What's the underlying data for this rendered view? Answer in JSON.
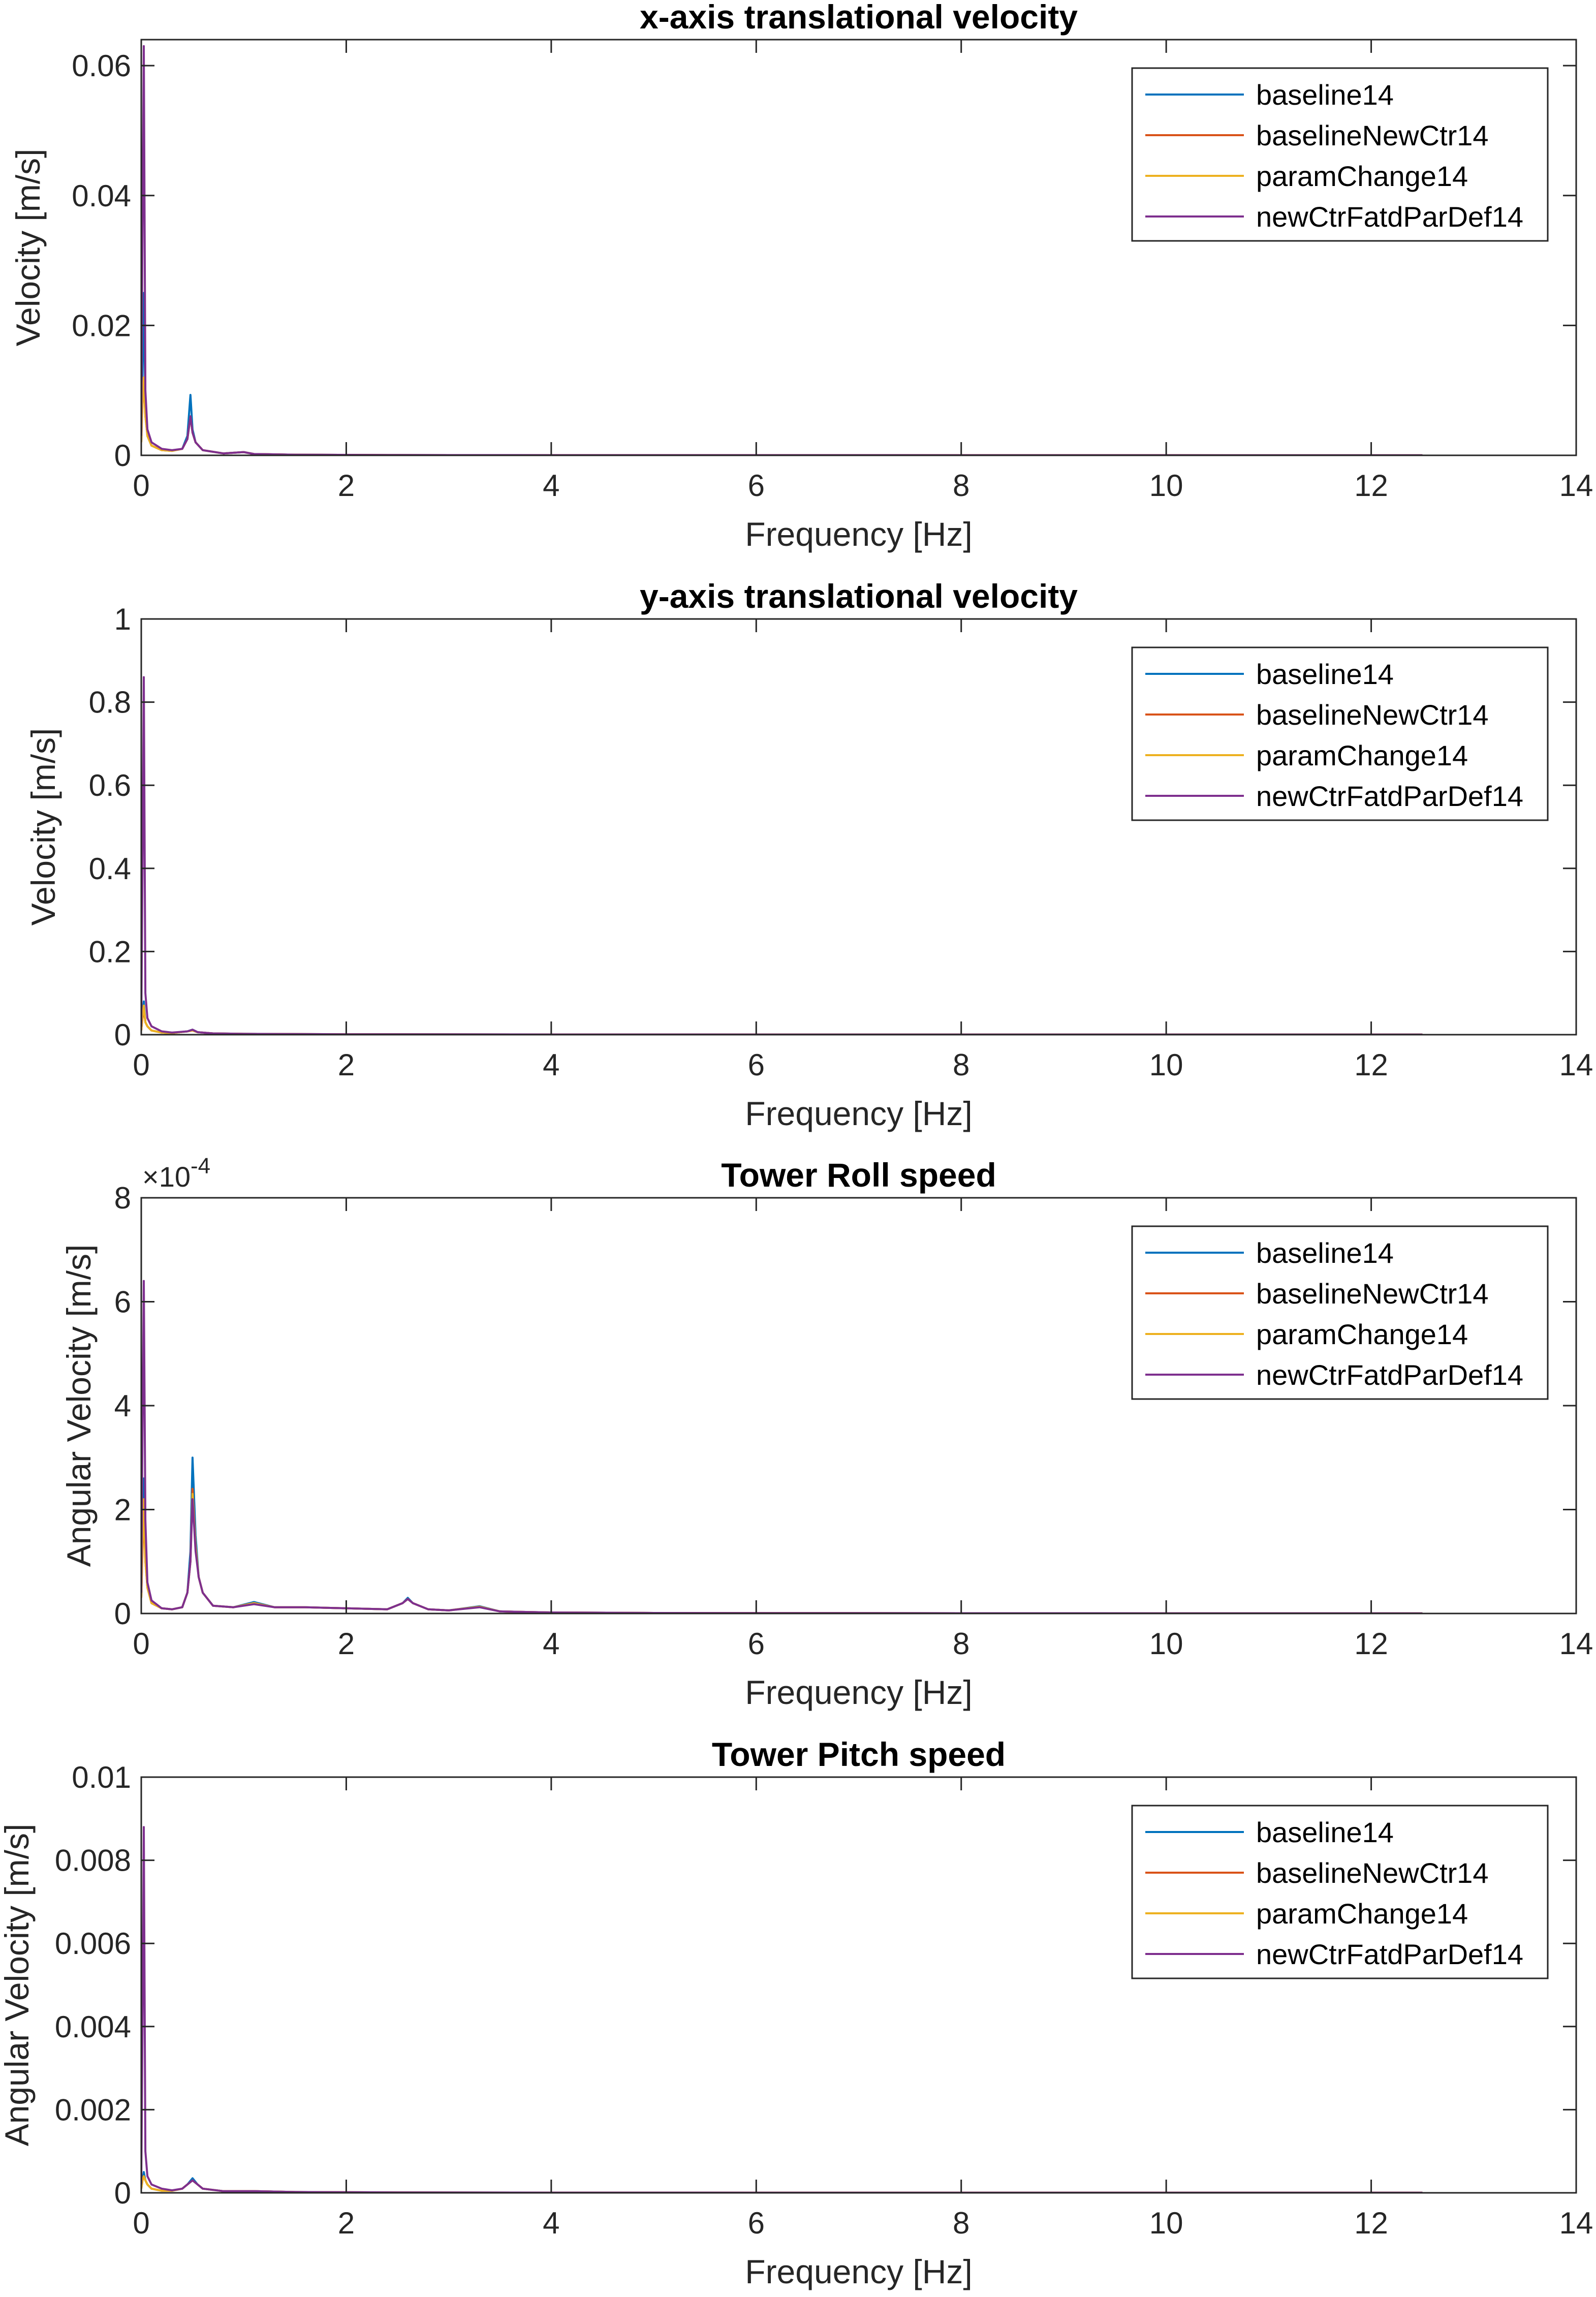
{
  "chart_data": [
    {
      "type": "line",
      "title": "x-axis translational velocity",
      "xlabel": "Frequency [Hz]",
      "ylabel": "Velocity [m/s]",
      "xlim": [
        0,
        14
      ],
      "ylim": [
        0,
        0.064
      ],
      "xticks": [
        0,
        2,
        4,
        6,
        8,
        10,
        12,
        14
      ],
      "xtick_labels": [
        "0",
        "2",
        "4",
        "6",
        "8",
        "10",
        "12",
        "14"
      ],
      "yticks": [
        0,
        0.02,
        0.04,
        0.06
      ],
      "ytick_labels": [
        "0",
        "0.02",
        "0.04",
        "0.06"
      ],
      "exponent_label": "",
      "legend_position": "top-right",
      "grid": false,
      "series": [
        {
          "name": "baseline14",
          "color": "#0072BD",
          "x": [
            0,
            0.012,
            0.025,
            0.04,
            0.06,
            0.1,
            0.2,
            0.3,
            0.4,
            0.45,
            0.48,
            0.5,
            0.53,
            0.6,
            0.8,
            1.0,
            1.1,
            1.5,
            2.5,
            4,
            8,
            12.5
          ],
          "y": [
            0.002,
            0.012,
            0.025,
            0.008,
            0.003,
            0.0015,
            0.0008,
            0.0007,
            0.001,
            0.003,
            0.0093,
            0.004,
            0.002,
            0.0008,
            0.0003,
            0.0005,
            0.0002,
            0.0001,
            5e-05,
            3e-05,
            2e-05,
            1e-05
          ]
        },
        {
          "name": "baselineNewCtr14",
          "color": "#D95319",
          "x": [
            0,
            0.012,
            0.025,
            0.04,
            0.06,
            0.1,
            0.2,
            0.3,
            0.4,
            0.45,
            0.48,
            0.5,
            0.53,
            0.6,
            0.8,
            1.0,
            1.1,
            1.5,
            2.5,
            4,
            8,
            12.5
          ],
          "y": [
            0.002,
            0.009,
            0.011,
            0.006,
            0.003,
            0.0015,
            0.0008,
            0.0007,
            0.001,
            0.0025,
            0.006,
            0.0035,
            0.002,
            0.0008,
            0.0003,
            0.0005,
            0.0002,
            0.0001,
            5e-05,
            3e-05,
            2e-05,
            1e-05
          ]
        },
        {
          "name": "paramChange14",
          "color": "#EDB120",
          "x": [
            0,
            0.012,
            0.025,
            0.04,
            0.06,
            0.1,
            0.2,
            0.3,
            0.4,
            0.45,
            0.48,
            0.5,
            0.53,
            0.6,
            0.8,
            1.0,
            1.1,
            1.5,
            2.5,
            4,
            8,
            12.5
          ],
          "y": [
            0.002,
            0.008,
            0.012,
            0.006,
            0.003,
            0.0015,
            0.0008,
            0.0007,
            0.001,
            0.0025,
            0.006,
            0.0035,
            0.002,
            0.0008,
            0.0003,
            0.0005,
            0.0002,
            0.0001,
            5e-05,
            3e-05,
            2e-05,
            1e-05
          ]
        },
        {
          "name": "newCtrFatdParDef14",
          "color": "#7E2F8E",
          "x": [
            0,
            0.012,
            0.025,
            0.04,
            0.06,
            0.1,
            0.2,
            0.3,
            0.4,
            0.45,
            0.48,
            0.5,
            0.53,
            0.6,
            0.8,
            1.0,
            1.1,
            1.5,
            2.5,
            4,
            8,
            12.5
          ],
          "y": [
            0.003,
            0.035,
            0.063,
            0.01,
            0.004,
            0.002,
            0.001,
            0.0008,
            0.001,
            0.0025,
            0.006,
            0.0035,
            0.002,
            0.0008,
            0.0003,
            0.0005,
            0.0002,
            0.0001,
            5e-05,
            3e-05,
            2e-05,
            1e-05
          ]
        }
      ]
    },
    {
      "type": "line",
      "title": "y-axis translational velocity",
      "xlabel": "Frequency [Hz]",
      "ylabel": "Velocity [m/s]",
      "xlim": [
        0,
        14
      ],
      "ylim": [
        0,
        1
      ],
      "xticks": [
        0,
        2,
        4,
        6,
        8,
        10,
        12,
        14
      ],
      "xtick_labels": [
        "0",
        "2",
        "4",
        "6",
        "8",
        "10",
        "12",
        "14"
      ],
      "yticks": [
        0,
        0.2,
        0.4,
        0.6,
        0.8,
        1
      ],
      "ytick_labels": [
        "0",
        "0.2",
        "0.4",
        "0.6",
        "0.8",
        "1"
      ],
      "exponent_label": "",
      "legend_position": "top-right",
      "grid": false,
      "series": [
        {
          "name": "baseline14",
          "color": "#0072BD",
          "x": [
            0,
            0.012,
            0.025,
            0.04,
            0.06,
            0.1,
            0.2,
            0.3,
            0.45,
            0.5,
            0.55,
            0.7,
            1.0,
            2,
            4,
            8,
            12.5
          ],
          "y": [
            0.01,
            0.05,
            0.08,
            0.03,
            0.02,
            0.01,
            0.005,
            0.004,
            0.008,
            0.012,
            0.006,
            0.003,
            0.002,
            0.001,
            0.0005,
            0.0003,
            0.0002
          ]
        },
        {
          "name": "baselineNewCtr14",
          "color": "#D95319",
          "x": [
            0,
            0.012,
            0.025,
            0.04,
            0.06,
            0.1,
            0.2,
            0.3,
            0.45,
            0.5,
            0.55,
            0.7,
            1.0,
            2,
            4,
            8,
            12.5
          ],
          "y": [
            0.01,
            0.04,
            0.06,
            0.03,
            0.02,
            0.01,
            0.005,
            0.004,
            0.008,
            0.01,
            0.006,
            0.003,
            0.002,
            0.001,
            0.0005,
            0.0003,
            0.0002
          ]
        },
        {
          "name": "paramChange14",
          "color": "#EDB120",
          "x": [
            0,
            0.012,
            0.025,
            0.04,
            0.06,
            0.1,
            0.2,
            0.3,
            0.45,
            0.5,
            0.55,
            0.7,
            1.0,
            2,
            4,
            8,
            12.5
          ],
          "y": [
            0.01,
            0.045,
            0.07,
            0.03,
            0.02,
            0.01,
            0.005,
            0.004,
            0.008,
            0.01,
            0.006,
            0.003,
            0.002,
            0.001,
            0.0005,
            0.0003,
            0.0002
          ]
        },
        {
          "name": "newCtrFatdParDef14",
          "color": "#7E2F8E",
          "x": [
            0,
            0.012,
            0.025,
            0.04,
            0.06,
            0.1,
            0.2,
            0.3,
            0.45,
            0.5,
            0.55,
            0.7,
            1.0,
            2,
            4,
            8,
            12.5
          ],
          "y": [
            0.02,
            0.4,
            0.86,
            0.1,
            0.04,
            0.02,
            0.008,
            0.005,
            0.008,
            0.012,
            0.006,
            0.003,
            0.002,
            0.001,
            0.0005,
            0.0003,
            0.0002
          ]
        }
      ]
    },
    {
      "type": "line",
      "title": "Tower Roll speed",
      "xlabel": "Frequency [Hz]",
      "ylabel": "Angular Velocity [m/s]",
      "xlim": [
        0,
        14
      ],
      "ylim": [
        0,
        8
      ],
      "xticks": [
        0,
        2,
        4,
        6,
        8,
        10,
        12,
        14
      ],
      "xtick_labels": [
        "0",
        "2",
        "4",
        "6",
        "8",
        "10",
        "12",
        "14"
      ],
      "yticks": [
        0,
        2,
        4,
        6,
        8
      ],
      "ytick_labels": [
        "0",
        "2",
        "4",
        "6",
        "8"
      ],
      "exponent_label": "×10",
      "exponent_power": "-4",
      "legend_position": "top-right",
      "grid": false,
      "series": [
        {
          "name": "baseline14",
          "color": "#0072BD",
          "x": [
            0,
            0.012,
            0.025,
            0.04,
            0.06,
            0.1,
            0.2,
            0.3,
            0.4,
            0.45,
            0.48,
            0.5,
            0.53,
            0.56,
            0.6,
            0.7,
            0.9,
            1.1,
            1.3,
            1.6,
            2.0,
            2.4,
            2.55,
            2.6,
            2.65,
            2.8,
            3.0,
            3.3,
            3.5,
            4.0,
            5,
            8,
            12.5
          ],
          "y": [
            0.3,
            1.5,
            2.6,
            1.2,
            0.5,
            0.2,
            0.1,
            0.08,
            0.12,
            0.4,
            1.2,
            3.0,
            1.5,
            0.7,
            0.4,
            0.15,
            0.12,
            0.22,
            0.12,
            0.12,
            0.1,
            0.08,
            0.2,
            0.3,
            0.2,
            0.08,
            0.06,
            0.14,
            0.04,
            0.02,
            0.01,
            0.005,
            0.003
          ]
        },
        {
          "name": "baselineNewCtr14",
          "color": "#D95319",
          "x": [
            0,
            0.012,
            0.025,
            0.04,
            0.06,
            0.1,
            0.2,
            0.3,
            0.4,
            0.45,
            0.48,
            0.5,
            0.53,
            0.56,
            0.6,
            0.7,
            0.9,
            1.1,
            1.3,
            1.6,
            2.0,
            2.4,
            2.55,
            2.6,
            2.65,
            2.8,
            3.0,
            3.3,
            3.5,
            4.0,
            5,
            8,
            12.5
          ],
          "y": [
            0.3,
            1.2,
            2.0,
            1.0,
            0.5,
            0.2,
            0.1,
            0.08,
            0.12,
            0.4,
            1.0,
            2.4,
            1.3,
            0.7,
            0.4,
            0.15,
            0.12,
            0.2,
            0.12,
            0.12,
            0.1,
            0.08,
            0.2,
            0.28,
            0.2,
            0.08,
            0.06,
            0.13,
            0.04,
            0.02,
            0.01,
            0.005,
            0.003
          ]
        },
        {
          "name": "paramChange14",
          "color": "#EDB120",
          "x": [
            0,
            0.012,
            0.025,
            0.04,
            0.06,
            0.1,
            0.2,
            0.3,
            0.4,
            0.45,
            0.48,
            0.5,
            0.53,
            0.56,
            0.6,
            0.7,
            0.9,
            1.1,
            1.3,
            1.6,
            2.0,
            2.4,
            2.55,
            2.6,
            2.65,
            2.8,
            3.0,
            3.3,
            3.5,
            4.0,
            5,
            8,
            12.5
          ],
          "y": [
            0.3,
            1.3,
            2.2,
            1.0,
            0.5,
            0.2,
            0.1,
            0.08,
            0.12,
            0.4,
            1.0,
            2.3,
            1.3,
            0.7,
            0.4,
            0.15,
            0.12,
            0.2,
            0.12,
            0.12,
            0.1,
            0.08,
            0.2,
            0.28,
            0.2,
            0.08,
            0.06,
            0.13,
            0.04,
            0.02,
            0.01,
            0.005,
            0.003
          ]
        },
        {
          "name": "newCtrFatdParDef14",
          "color": "#7E2F8E",
          "x": [
            0,
            0.012,
            0.025,
            0.04,
            0.06,
            0.1,
            0.2,
            0.3,
            0.4,
            0.45,
            0.48,
            0.5,
            0.53,
            0.56,
            0.6,
            0.7,
            0.9,
            1.1,
            1.3,
            1.6,
            2.0,
            2.4,
            2.55,
            2.6,
            2.65,
            2.8,
            3.0,
            3.3,
            3.5,
            4.0,
            5,
            8,
            12.5
          ],
          "y": [
            0.4,
            3.5,
            6.4,
            1.8,
            0.6,
            0.25,
            0.1,
            0.08,
            0.12,
            0.4,
            1.0,
            2.2,
            1.2,
            0.7,
            0.4,
            0.15,
            0.12,
            0.18,
            0.12,
            0.12,
            0.1,
            0.08,
            0.2,
            0.28,
            0.2,
            0.08,
            0.06,
            0.12,
            0.04,
            0.02,
            0.01,
            0.005,
            0.003
          ]
        }
      ]
    },
    {
      "type": "line",
      "title": "Tower Pitch speed",
      "xlabel": "Frequency [Hz]",
      "ylabel": "Angular Velocity [m/s]",
      "xlim": [
        0,
        14
      ],
      "ylim": [
        0,
        0.01
      ],
      "xticks": [
        0,
        2,
        4,
        6,
        8,
        10,
        12,
        14
      ],
      "xtick_labels": [
        "0",
        "2",
        "4",
        "6",
        "8",
        "10",
        "12",
        "14"
      ],
      "yticks": [
        0,
        0.002,
        0.004,
        0.006,
        0.008,
        0.01
      ],
      "ytick_labels": [
        "0",
        "0.002",
        "0.004",
        "0.006",
        "0.008",
        "0.01"
      ],
      "exponent_label": "",
      "legend_position": "top-right",
      "grid": false,
      "series": [
        {
          "name": "baseline14",
          "color": "#0072BD",
          "x": [
            0,
            0.012,
            0.025,
            0.04,
            0.06,
            0.1,
            0.2,
            0.3,
            0.4,
            0.45,
            0.5,
            0.55,
            0.6,
            0.8,
            1.1,
            1.5,
            2.5,
            4,
            8,
            12.5
          ],
          "y": [
            0.0001,
            0.0003,
            0.0005,
            0.0003,
            0.0002,
            0.0001,
            5e-05,
            5e-05,
            0.0001,
            0.0002,
            0.00035,
            0.0002,
            0.0001,
            4e-05,
            4e-05,
            2e-05,
            1e-05,
            5e-06,
            3e-06,
            2e-06
          ]
        },
        {
          "name": "baselineNewCtr14",
          "color": "#D95319",
          "x": [
            0,
            0.012,
            0.025,
            0.04,
            0.06,
            0.1,
            0.2,
            0.3,
            0.4,
            0.45,
            0.5,
            0.55,
            0.6,
            0.8,
            1.1,
            1.5,
            2.5,
            4,
            8,
            12.5
          ],
          "y": [
            0.0001,
            0.0003,
            0.0004,
            0.0003,
            0.0002,
            0.0001,
            5e-05,
            5e-05,
            0.0001,
            0.0002,
            0.0003,
            0.0002,
            0.0001,
            4e-05,
            4e-05,
            2e-05,
            1e-05,
            5e-06,
            3e-06,
            2e-06
          ]
        },
        {
          "name": "paramChange14",
          "color": "#EDB120",
          "x": [
            0,
            0.012,
            0.025,
            0.04,
            0.06,
            0.1,
            0.2,
            0.3,
            0.4,
            0.45,
            0.5,
            0.55,
            0.6,
            0.8,
            1.1,
            1.5,
            2.5,
            4,
            8,
            12.5
          ],
          "y": [
            0.0001,
            0.0003,
            0.0004,
            0.0003,
            0.0002,
            0.0001,
            5e-05,
            5e-05,
            0.0001,
            0.0002,
            0.0003,
            0.0002,
            0.0001,
            4e-05,
            4e-05,
            2e-05,
            1e-05,
            5e-06,
            3e-06,
            2e-06
          ]
        },
        {
          "name": "newCtrFatdParDef14",
          "color": "#7E2F8E",
          "x": [
            0,
            0.012,
            0.025,
            0.04,
            0.06,
            0.1,
            0.2,
            0.3,
            0.4,
            0.45,
            0.5,
            0.55,
            0.6,
            0.8,
            1.1,
            1.5,
            2.5,
            4,
            8,
            12.5
          ],
          "y": [
            0.0002,
            0.004,
            0.0088,
            0.001,
            0.0004,
            0.0002,
            0.0001,
            6e-05,
            0.0001,
            0.0002,
            0.0003,
            0.0002,
            0.0001,
            4e-05,
            4e-05,
            2e-05,
            1e-05,
            5e-06,
            3e-06,
            2e-06
          ]
        }
      ]
    }
  ]
}
